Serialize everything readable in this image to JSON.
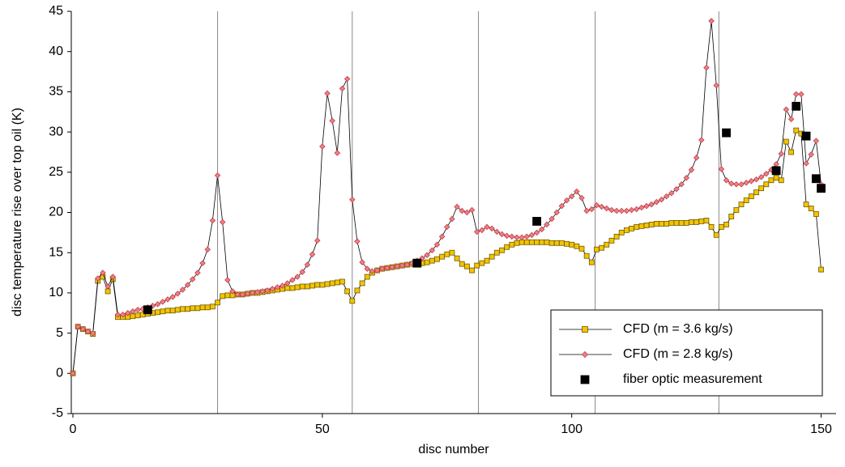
{
  "chart_data": {
    "type": "line",
    "xlabel": "disc number",
    "ylabel": "disc temperature rise over top oil (K)",
    "xlim": [
      0,
      153
    ],
    "xticks": [
      0,
      50,
      100,
      150
    ],
    "ylim": [
      -5,
      45
    ],
    "yticks": [
      -5,
      0,
      5,
      10,
      15,
      20,
      25,
      30,
      35,
      40,
      45
    ],
    "vlines": [
      29,
      56,
      81.3,
      104.7,
      129.5
    ],
    "legend": "lower right",
    "x": [
      0,
      1,
      2,
      3,
      4,
      5,
      6,
      7,
      8,
      9,
      10,
      11,
      12,
      13,
      14,
      15,
      16,
      17,
      18,
      19,
      20,
      21,
      22,
      23,
      24,
      25,
      26,
      27,
      28,
      29,
      30,
      31,
      32,
      33,
      34,
      35,
      36,
      37,
      38,
      39,
      40,
      41,
      42,
      43,
      44,
      45,
      46,
      47,
      48,
      49,
      50,
      51,
      52,
      53,
      54,
      55,
      56,
      57,
      58,
      59,
      60,
      61,
      62,
      63,
      64,
      65,
      66,
      67,
      68,
      69,
      70,
      71,
      72,
      73,
      74,
      75,
      76,
      77,
      78,
      79,
      80,
      81,
      82,
      83,
      84,
      85,
      86,
      87,
      88,
      89,
      90,
      91,
      92,
      93,
      94,
      95,
      96,
      97,
      98,
      99,
      100,
      101,
      102,
      103,
      104,
      105,
      106,
      107,
      108,
      109,
      110,
      111,
      112,
      113,
      114,
      115,
      116,
      117,
      118,
      119,
      120,
      121,
      122,
      123,
      124,
      125,
      126,
      127,
      128,
      129,
      130,
      131,
      132,
      133,
      134,
      135,
      136,
      137,
      138,
      139,
      140,
      141,
      142,
      143,
      144,
      145,
      146,
      147,
      148,
      149,
      150
    ],
    "series": [
      {
        "name": "CFD (m = 3.6 kg/s)",
        "color": "#f5c400",
        "marker": "square",
        "line": true,
        "values": [
          0,
          5.8,
          5.5,
          5.2,
          4.9,
          11.5,
          12,
          10.2,
          11.7,
          7,
          7,
          7,
          7.1,
          7.2,
          7.3,
          7.4,
          7.5,
          7.6,
          7.7,
          7.8,
          7.8,
          7.9,
          8,
          8,
          8.1,
          8.1,
          8.2,
          8.2,
          8.3,
          8.8,
          9.6,
          9.7,
          9.7,
          9.8,
          9.8,
          9.9,
          10,
          10,
          10.1,
          10.2,
          10.3,
          10.4,
          10.5,
          10.6,
          10.6,
          10.7,
          10.8,
          10.8,
          10.9,
          11,
          11,
          11.1,
          11.2,
          11.3,
          11.4,
          10.2,
          9,
          10.3,
          11.2,
          12,
          12.5,
          12.8,
          13,
          13.1,
          13.2,
          13.3,
          13.4,
          13.5,
          13.6,
          13.6,
          13.7,
          13.8,
          14,
          14.2,
          14.5,
          14.8,
          15,
          14.3,
          13.6,
          13.3,
          12.8,
          13.4,
          13.7,
          14,
          14.5,
          15,
          15.3,
          15.7,
          16,
          16.2,
          16.3,
          16.3,
          16.3,
          16.3,
          16.3,
          16.3,
          16.2,
          16.2,
          16.2,
          16.1,
          16,
          15.8,
          15.5,
          14.6,
          13.8,
          15.4,
          15.6,
          16,
          16.5,
          17,
          17.5,
          17.8,
          18,
          18.2,
          18.3,
          18.4,
          18.5,
          18.6,
          18.6,
          18.6,
          18.7,
          18.7,
          18.7,
          18.7,
          18.8,
          18.8,
          18.9,
          19,
          18.2,
          17.2,
          18.2,
          18.5,
          19.5,
          20.3,
          21,
          21.5,
          22,
          22.5,
          23,
          23.5,
          24,
          24.3,
          24,
          28.8,
          27.5,
          30.2,
          29.8,
          21,
          20.5,
          19.8,
          12.9
        ]
      },
      {
        "name": "CFD (m = 2.8 kg/s)",
        "color": "#f08080",
        "marker": "diamond",
        "line": true,
        "values": [
          0,
          5.8,
          5.5,
          5.2,
          5,
          11.8,
          12.5,
          10.8,
          12,
          7.3,
          7.3,
          7.5,
          7.7,
          7.9,
          8,
          8.2,
          8.4,
          8.6,
          8.9,
          9.2,
          9.5,
          9.9,
          10.4,
          11,
          11.7,
          12.5,
          13.7,
          15.4,
          19,
          24.6,
          18.8,
          11.6,
          10.2,
          9.8,
          9.8,
          9.9,
          10,
          10.1,
          10.2,
          10.3,
          10.5,
          10.7,
          10.9,
          11.2,
          11.6,
          12,
          12.6,
          13.5,
          14.8,
          16.5,
          28.2,
          34.8,
          31.4,
          27.4,
          35.4,
          36.6,
          21.6,
          16.4,
          13.8,
          13,
          12.7,
          12.8,
          13,
          13.1,
          13.2,
          13.3,
          13.4,
          13.5,
          13.7,
          14,
          14.3,
          14.7,
          15.3,
          16,
          17,
          18.2,
          19.2,
          20.7,
          20.2,
          20,
          20.3,
          17.6,
          17.8,
          18.2,
          18,
          17.6,
          17.3,
          17.1,
          17,
          16.9,
          16.9,
          17,
          17.2,
          17.5,
          17.9,
          18.5,
          19.2,
          20,
          20.8,
          21.5,
          22,
          22.6,
          21.8,
          20.2,
          20.4,
          20.9,
          20.7,
          20.5,
          20.3,
          20.2,
          20.2,
          20.2,
          20.3,
          20.4,
          20.6,
          20.8,
          21,
          21.3,
          21.6,
          22,
          22.4,
          22.9,
          23.5,
          24.3,
          25.3,
          26.8,
          29,
          38,
          43.8,
          35.8,
          25.4,
          24,
          23.6,
          23.5,
          23.5,
          23.7,
          23.9,
          24.1,
          24.4,
          24.8,
          25.3,
          26,
          27.3,
          32.8,
          31.6,
          34.7,
          34.7,
          26.1,
          27.2,
          28.9,
          23.5
        ]
      },
      {
        "name": "fiber optic measurement",
        "color": "#000000",
        "marker": "square",
        "line": false,
        "x": [
          15,
          69,
          93,
          131,
          141,
          145,
          147,
          149,
          150
        ],
        "values": [
          7.9,
          13.7,
          18.9,
          29.9,
          25.2,
          33.2,
          29.5,
          24.2,
          23
        ]
      }
    ]
  }
}
